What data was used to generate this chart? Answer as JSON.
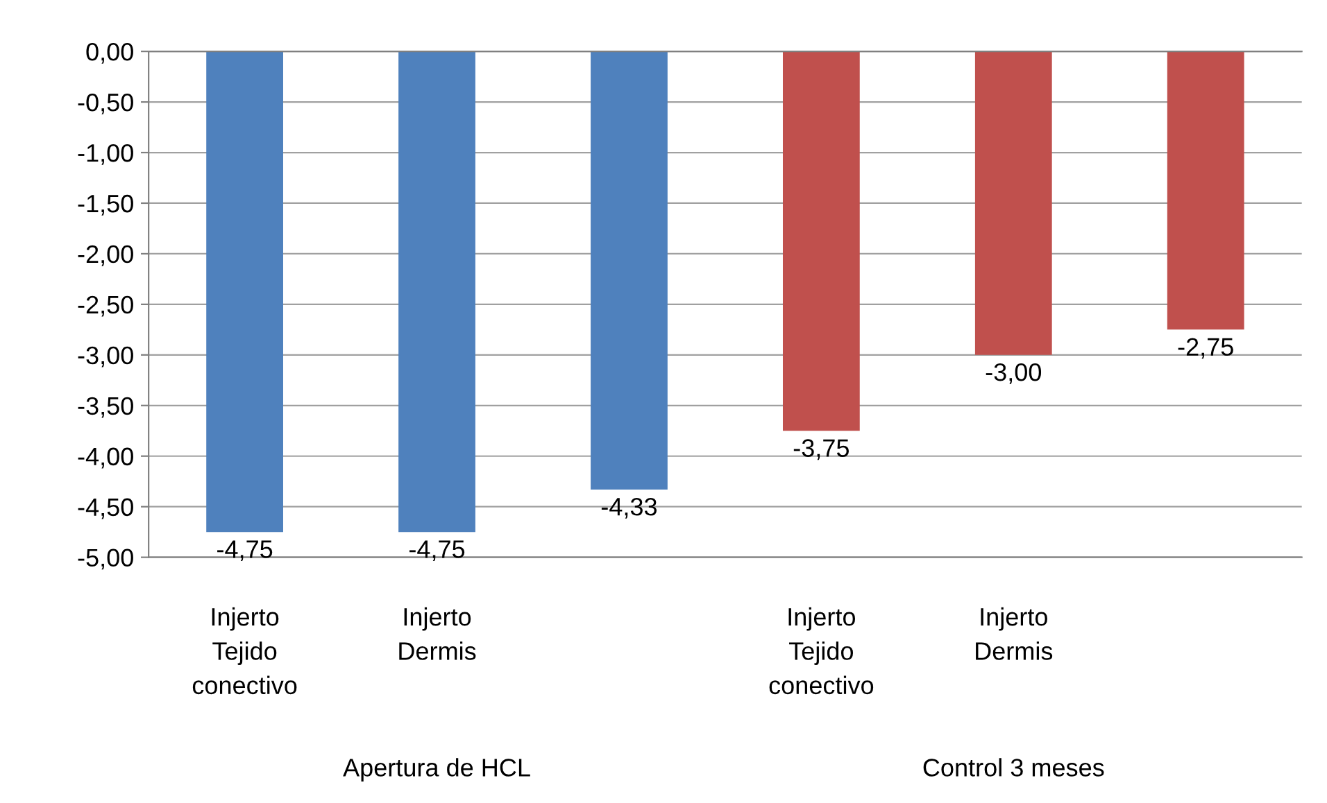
{
  "chart_data": {
    "type": "bar",
    "categories": [
      "Injerto\nTejido\nconectivo",
      "Injerto\nDermis",
      null,
      "Injerto\nTejido\nconectivo",
      "Injerto\nDermis",
      null
    ],
    "series": [
      {
        "color": "#4f81bd",
        "values": [
          -4.75,
          -4.75,
          -4.33,
          null,
          null,
          null
        ],
        "value_labels": [
          "-4,75",
          "-4,75",
          "-4,33",
          null,
          null,
          null
        ]
      },
      {
        "color": "#c0504d",
        "values": [
          null,
          null,
          null,
          -3.75,
          -3.0,
          -2.75
        ],
        "value_labels": [
          null,
          null,
          null,
          "-3,75",
          "-3,00",
          "-2,75"
        ]
      }
    ],
    "ylim": [
      -5,
      0
    ],
    "yticks": [
      {
        "value": 0,
        "label": "0,00"
      },
      {
        "value": -0.5,
        "label": "-0,50"
      },
      {
        "value": -1,
        "label": "-1,00"
      },
      {
        "value": -1.5,
        "label": "-1,50"
      },
      {
        "value": -2,
        "label": "-2,00"
      },
      {
        "value": -2.5,
        "label": "-2,50"
      },
      {
        "value": -3,
        "label": "-3,00"
      },
      {
        "value": -3.5,
        "label": "-3,50"
      },
      {
        "value": -4,
        "label": "-4,00"
      },
      {
        "value": -4.5,
        "label": "-4,50"
      },
      {
        "value": -5,
        "label": "-5,00"
      }
    ],
    "annotations": [
      "Apertura de HCL",
      "Control 3 meses"
    ],
    "grid": "y",
    "legend": false
  }
}
